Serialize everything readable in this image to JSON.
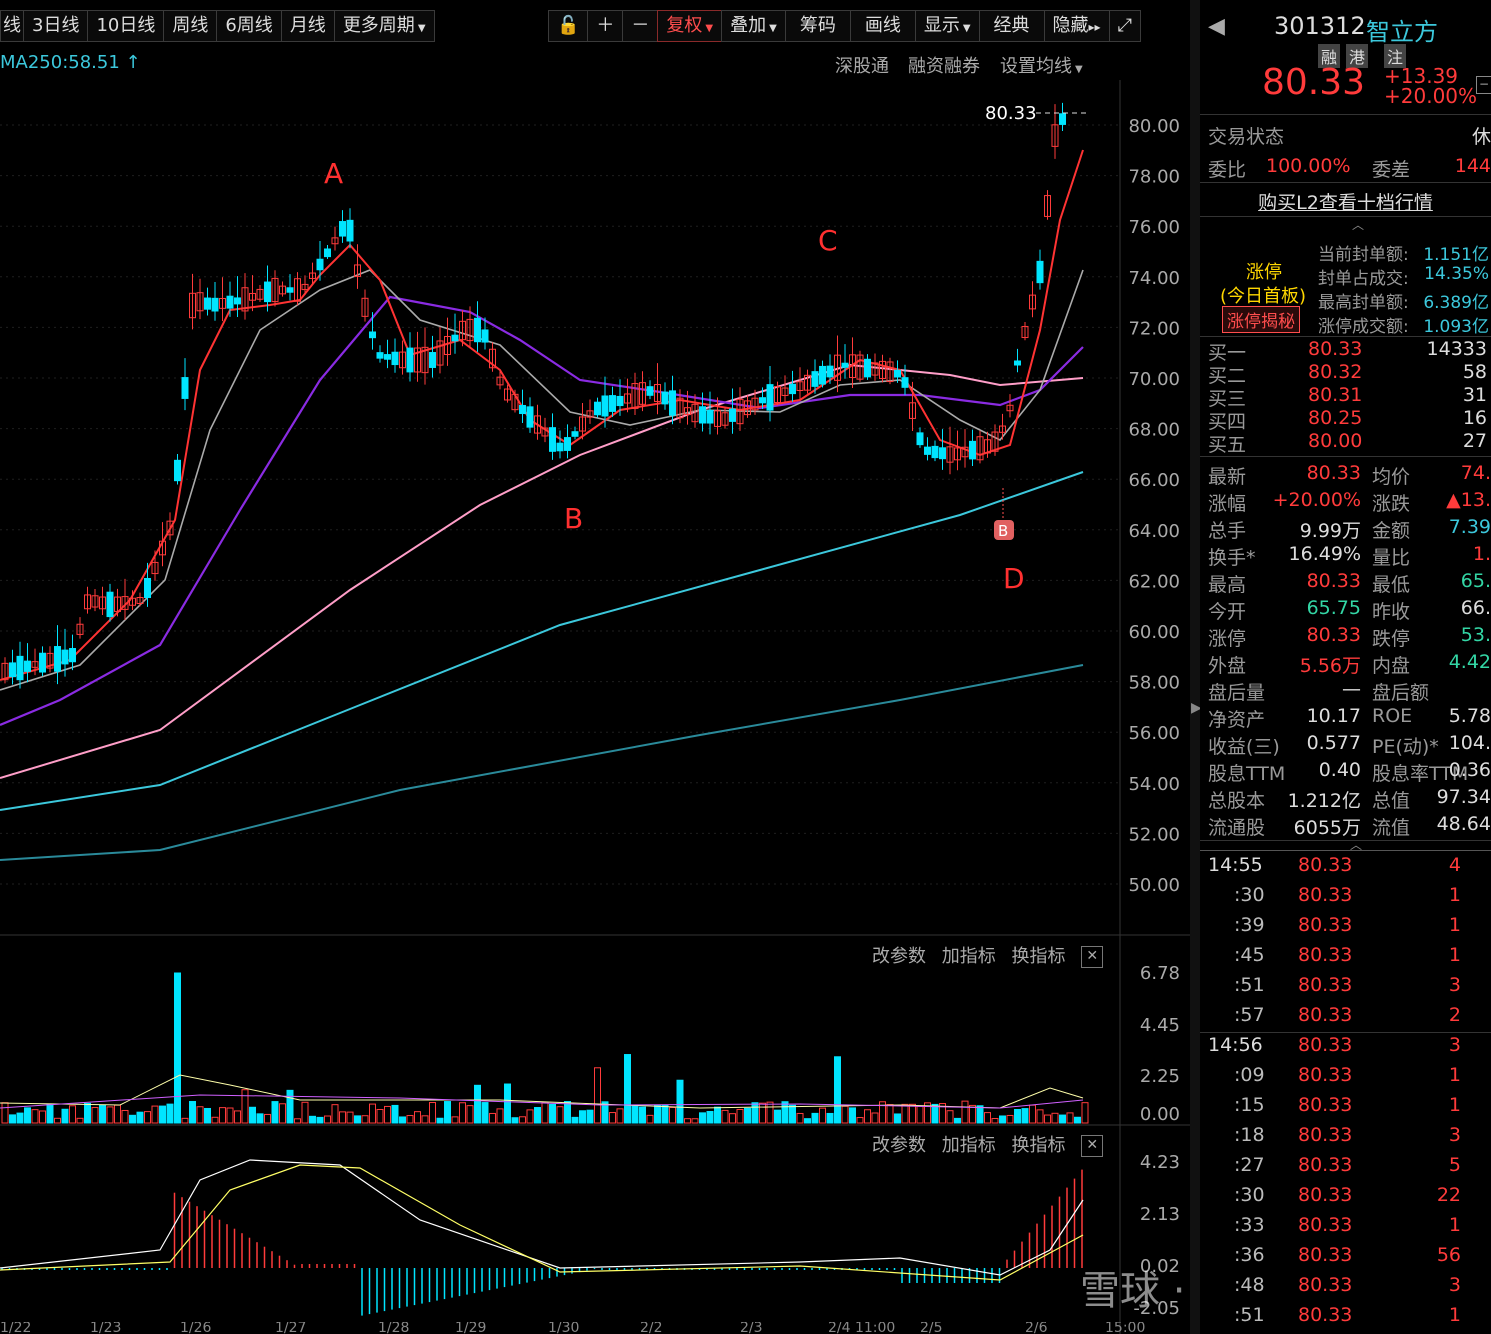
{
  "toolbar": {
    "items": [
      {
        "label": "3日线"
      },
      {
        "label": "10日线"
      },
      {
        "label": "周线"
      },
      {
        "label": "6周线"
      },
      {
        "label": "月线"
      },
      {
        "label": "更多周期"
      }
    ],
    "tools": [
      {
        "label": "复权"
      },
      {
        "label": "叠加"
      },
      {
        "label": "筹码"
      },
      {
        "label": "画线"
      },
      {
        "label": "显示"
      },
      {
        "label": "经典"
      },
      {
        "label": "隐藏"
      }
    ]
  },
  "ma_label": "MA250:58.51 ↑",
  "links": {
    "a": "深股通",
    "b": "融资融券",
    "c": "设置均线"
  },
  "price_axis": [
    "80.00",
    "78.00",
    "76.00",
    "74.00",
    "72.00",
    "70.00",
    "68.00",
    "66.00",
    "64.00",
    "62.00",
    "60.00",
    "58.00",
    "56.00",
    "54.00",
    "52.00",
    "50.00"
  ],
  "last_price_tag": "80.33",
  "annotations": {
    "A": "A",
    "B": "B",
    "C": "C",
    "D": "D",
    "badge": "B"
  },
  "vol_axis": [
    "6.78",
    "4.45",
    "2.25",
    "0.00"
  ],
  "macd_axis": [
    "4.23",
    "2.13",
    "0.02",
    "-2.05"
  ],
  "panel_tools": {
    "p1": "改参数",
    "p2": "加指标",
    "p3": "换指标"
  },
  "x_labels": [
    "1/22",
    "1/23",
    "1/26",
    "1/27",
    "1/28",
    "1/29",
    "1/30",
    "2/2",
    "2/3",
    "2/4 11:00",
    "2/5",
    "2/6",
    "15:00"
  ],
  "colors": {
    "up": "#ff3b3b",
    "down": "#00e5ff",
    "ma5": "#ff3333",
    "ma10": "#aaaaaa",
    "ma20": "#8a2be2",
    "ma60": "#ff9ec8",
    "ma120": "#3cc8dc",
    "ma250": "#2a8a9a"
  },
  "quote": {
    "code": "301312",
    "name": "智立方",
    "badges": [
      "融",
      "港",
      "注"
    ],
    "price": "80.33",
    "change": "+13.39",
    "pct": "+20.00%",
    "status_label": "交易状态",
    "status_value": "休",
    "wb_label": "委比",
    "wb_value": "100.00%",
    "wc_label": "委差",
    "wc_value": "144",
    "l2": "购买L2查看十档行情",
    "limit_title": "涨停",
    "limit_sub": "(今日首板)",
    "limit_btn": "涨停揭秘",
    "seal": [
      {
        "label": "当前封单额:",
        "value": "1.151亿"
      },
      {
        "label": "封单占成交:",
        "value": "14.35%"
      },
      {
        "label": "最高封单额:",
        "value": "6.389亿"
      },
      {
        "label": "涨停成交额:",
        "value": "1.093亿"
      }
    ],
    "bids": [
      {
        "label": "买一",
        "price": "80.33",
        "vol": "14333"
      },
      {
        "label": "买二",
        "price": "80.32",
        "vol": "58"
      },
      {
        "label": "买三",
        "price": "80.31",
        "vol": "31"
      },
      {
        "label": "买四",
        "price": "80.25",
        "vol": "16"
      },
      {
        "label": "买五",
        "price": "80.00",
        "vol": "27"
      }
    ],
    "stats": [
      {
        "l1": "最新",
        "v1": "80.33",
        "c1": "r",
        "l2": "均价",
        "v2": "74.",
        "c2": "r"
      },
      {
        "l1": "涨幅",
        "v1": "+20.00%",
        "c1": "r",
        "l2": "涨跌",
        "v2": "▲13.",
        "c2": "r"
      },
      {
        "l1": "总手",
        "v1": "9.99万",
        "c1": "w",
        "l2": "金额",
        "v2": "7.39",
        "c2": "c"
      },
      {
        "l1": "换手*",
        "v1": "16.49%",
        "c1": "w",
        "l2": "量比",
        "v2": "1.",
        "c2": "r"
      },
      {
        "l1": "最高",
        "v1": "80.33",
        "c1": "r",
        "l2": "最低",
        "v2": "65.",
        "c2": "g"
      },
      {
        "l1": "今开",
        "v1": "65.75",
        "c1": "g",
        "l2": "昨收",
        "v2": "66.",
        "c2": "w"
      },
      {
        "l1": "涨停",
        "v1": "80.33",
        "c1": "r",
        "l2": "跌停",
        "v2": "53.",
        "c2": "g"
      },
      {
        "l1": "外盘",
        "v1": "5.56万",
        "c1": "r",
        "l2": "内盘",
        "v2": "4.42",
        "c2": "g"
      },
      {
        "l1": "盘后量",
        "v1": "—",
        "c1": "w",
        "l2": "盘后额",
        "v2": "",
        "c2": "w"
      },
      {
        "l1": "净资产",
        "v1": "10.17",
        "c1": "w",
        "l2": "ROE",
        "v2": "5.78",
        "c2": "w"
      },
      {
        "l1": "收益(三)",
        "v1": "0.577",
        "c1": "w",
        "l2": "PE(动)*",
        "v2": "104.",
        "c2": "w"
      },
      {
        "l1": "股息TTM",
        "v1": "0.40",
        "c1": "w",
        "l2": "股息率TTM",
        "v2": "0.36",
        "c2": "w"
      },
      {
        "l1": "总股本",
        "v1": "1.212亿",
        "c1": "w",
        "l2": "总值",
        "v2": "97.34",
        "c2": "w"
      },
      {
        "l1": "流通股",
        "v1": "6055万",
        "c1": "w",
        "l2": "流值",
        "v2": "48.64",
        "c2": "w"
      }
    ],
    "ticks": [
      {
        "t": "14:55",
        "p": "80.33",
        "v": "4"
      },
      {
        "t": ":30",
        "p": "80.33",
        "v": "1"
      },
      {
        "t": ":39",
        "p": "80.33",
        "v": "1"
      },
      {
        "t": ":45",
        "p": "80.33",
        "v": "1"
      },
      {
        "t": ":51",
        "p": "80.33",
        "v": "3"
      },
      {
        "t": ":57",
        "p": "80.33",
        "v": "2"
      },
      {
        "t": "14:56",
        "p": "80.33",
        "v": "3"
      },
      {
        "t": ":09",
        "p": "80.33",
        "v": "1"
      },
      {
        "t": ":15",
        "p": "80.33",
        "v": "1"
      },
      {
        "t": ":18",
        "p": "80.33",
        "v": "3"
      },
      {
        "t": ":27",
        "p": "80.33",
        "v": "5"
      },
      {
        "t": ":30",
        "p": "80.33",
        "v": "22"
      },
      {
        "t": ":33",
        "p": "80.33",
        "v": "1"
      },
      {
        "t": ":36",
        "p": "80.33",
        "v": "56"
      },
      {
        "t": ":48",
        "p": "80.33",
        "v": "3"
      },
      {
        "t": ":51",
        "p": "80.33",
        "v": "1"
      }
    ]
  },
  "watermark": "雪球 · 燕云布衣"
}
